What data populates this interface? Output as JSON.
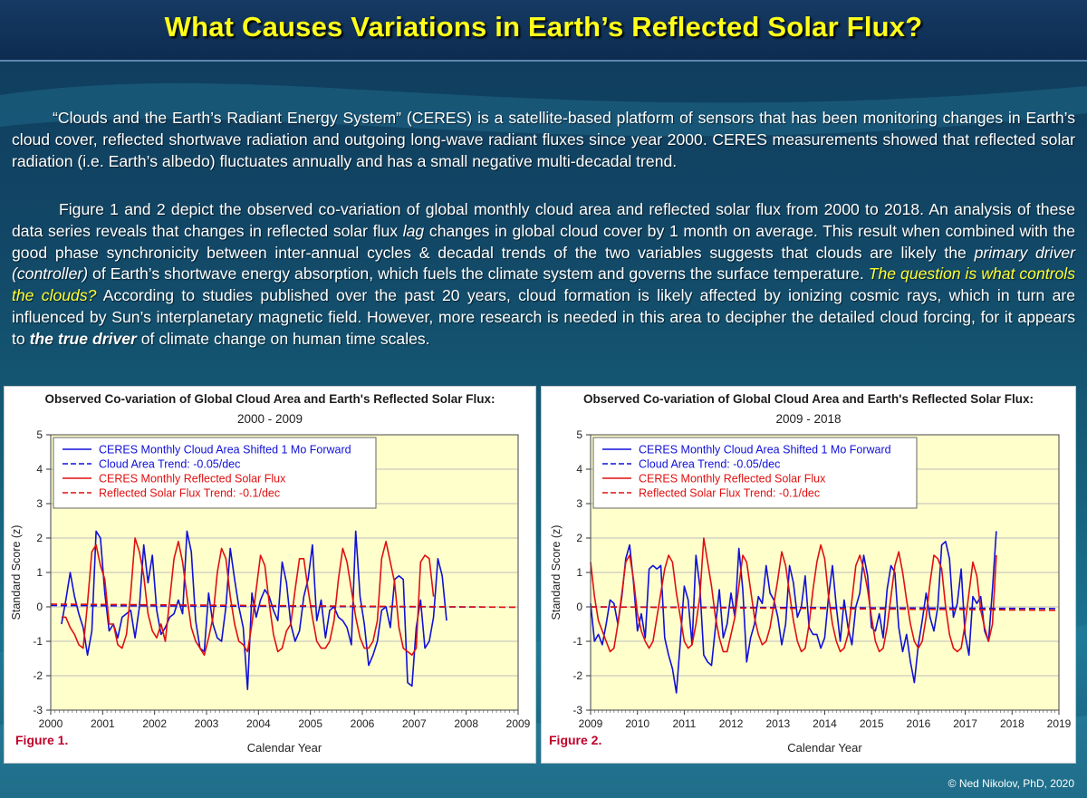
{
  "header": {
    "title": "What Causes Variations in Earth’s Reflected Solar Flux?"
  },
  "paragraph1": "“Clouds and the Earth’s Radiant Energy System” (CERES) is a satellite-based platform of sensors that has been monitoring changes in Earth’s cloud cover, reflected shortwave radiation and outgoing long-wave radiant fluxes since year 2000. CERES measurements showed that reflected solar radiation (i.e. Earth’s albedo) fluctuates annually and has a small negative multi-decadal trend.",
  "paragraph2": {
    "part1": "Figure 1 and 2 depict the observed co-variation of global monthly cloud area and reflected solar flux from 2000 to 2018. An analysis of these data series reveals that changes in reflected solar flux ",
    "lag": "lag",
    "part2": " changes in global cloud cover by 1 month on average. This result when combined with the good phase synchronicity between inter-annual cycles & decadal trends of the two variables suggests that clouds are likely the ",
    "primary": "primary driver (controller)",
    "part3": " of Earth’s shortwave energy absorption, which  fuels the climate system and governs the surface temperature. ",
    "question": "The question is what controls the clouds?",
    "part4": " According to studies published over the past 20 years, cloud formation is likely affected by ionizing cosmic rays, which in turn are influenced by Sun’s interplanetary magnetic field. However, more research is needed in this area to decipher the detailed cloud forcing, for it appears to ",
    "true_driver": "the true driver",
    "part5": " of climate change on human time scales."
  },
  "copyright": "© Ned Nikolov, PhD, 2020",
  "colors": {
    "cloud": "#1010d8",
    "flux": "#e01010",
    "plot_bg": "#ffffcc",
    "title_yellow": "#ffff1a"
  },
  "chart_data": [
    {
      "type": "line",
      "figure_label": "Figure 1.",
      "title": "Observed Co-variation of Global Cloud Area and Earth's Reflected Solar Flux:",
      "subtitle": "2000 - 2009",
      "xlabel": "Calendar Year",
      "ylabel": "Standard Score (z)",
      "xlim": [
        2000,
        2009
      ],
      "ylim": [
        -3,
        5
      ],
      "x_ticks": [
        "2000",
        "2001",
        "2002",
        "2003",
        "2004",
        "2005",
        "2006",
        "2007",
        "2008",
        "2009"
      ],
      "y_ticks": [
        "5",
        "4",
        "3",
        "2",
        "1",
        "0",
        "-1",
        "-2",
        "-3"
      ],
      "legend": [
        "CERES Monthly Cloud Area Shifted 1 Mo Forward",
        "Cloud Area Trend: -0.05/dec",
        "CERES Monthly Reflected Solar Flux",
        "Reflected Solar Flux Trend: -0.1/dec"
      ],
      "series": [
        {
          "name": "CERES Monthly Cloud Area Shifted 1 Mo Forward",
          "x_start": 2000.208,
          "step": 0.0833,
          "values": [
            -0.5,
            0.2,
            1.0,
            0.3,
            -0.2,
            -0.6,
            -1.4,
            -0.7,
            2.2,
            2.0,
            0.4,
            -0.7,
            -0.5,
            -0.9,
            -0.3,
            -0.2,
            -0.1,
            -0.9,
            0.0,
            1.8,
            0.7,
            1.5,
            -0.1,
            -0.8,
            -0.6,
            -0.3,
            -0.2,
            0.2,
            -0.2,
            2.2,
            1.6,
            -0.4,
            -1.2,
            -1.3,
            0.4,
            -0.5,
            -0.9,
            -1.0,
            0.0,
            1.7,
            0.8,
            0.0,
            -0.6,
            -2.4,
            0.4,
            -0.3,
            0.2,
            0.5,
            0.3,
            -0.1,
            -0.4,
            1.3,
            0.7,
            -0.5,
            -1.0,
            -0.7,
            0.3,
            0.8,
            1.8,
            -0.4,
            0.2,
            -0.9,
            -0.1,
            0.0,
            -0.3,
            -0.4,
            -0.6,
            -1.1,
            2.2,
            0.3,
            -0.5,
            -1.7,
            -1.4,
            -1.0,
            -0.1,
            0.0,
            -0.6,
            0.8,
            0.9,
            0.8,
            -2.2,
            -2.3,
            -0.6,
            0.2,
            -1.2,
            -1.0,
            -0.3,
            1.4,
            0.9,
            -0.4
          ]
        },
        {
          "name": "CERES Monthly Reflected Solar Flux",
          "x_start": 2000.208,
          "step": 0.0833,
          "values": [
            -0.3,
            -0.3,
            -0.6,
            -0.8,
            -1.1,
            -1.2,
            0.1,
            1.6,
            1.8,
            1.2,
            0.8,
            -0.5,
            -0.5,
            -1.1,
            -1.2,
            -0.8,
            0.4,
            2.0,
            1.6,
            0.9,
            -0.2,
            -0.7,
            -0.9,
            -0.5,
            -1.0,
            0.2,
            1.4,
            1.9,
            1.3,
            0.3,
            -0.6,
            -1.0,
            -1.2,
            -1.4,
            -0.9,
            -0.3,
            1.0,
            1.7,
            1.4,
            0.3,
            -0.5,
            -1.0,
            -1.1,
            -1.3,
            -0.5,
            0.5,
            1.5,
            1.2,
            0.1,
            -0.8,
            -1.3,
            -1.2,
            -0.7,
            -0.5,
            0.5,
            1.4,
            1.4,
            0.5,
            -0.3,
            -1.0,
            -1.2,
            -1.2,
            -1.0,
            -0.4,
            0.8,
            1.7,
            1.3,
            0.5,
            -0.3,
            -0.9,
            -1.2,
            -1.2,
            -1.0,
            -0.4,
            1.4,
            1.9,
            1.3,
            0.7,
            -0.6,
            -1.2,
            -1.3,
            -1.4,
            -1.2,
            1.3,
            1.5,
            1.4,
            0.3
          ]
        },
        {
          "name": "Cloud Area Trend: -0.05/dec",
          "x": [
            2000,
            2009
          ],
          "values": [
            0.04,
            -0.01
          ]
        },
        {
          "name": "Reflected Solar Flux Trend: -0.1/dec",
          "x": [
            2000,
            2009
          ],
          "values": [
            0.08,
            -0.01
          ]
        }
      ]
    },
    {
      "type": "line",
      "figure_label": "Figure 2.",
      "title": "Observed Co-variation of Global Cloud Area and Earth's Reflected Solar Flux:",
      "subtitle": "2009 - 2018",
      "xlabel": "Calendar Year",
      "ylabel": "Standard Score (z)",
      "xlim": [
        2009,
        2019
      ],
      "ylim": [
        -3,
        5
      ],
      "x_ticks": [
        "2009",
        "2010",
        "2011",
        "2012",
        "2013",
        "2014",
        "2015",
        "2016",
        "2017",
        "2018",
        "2019"
      ],
      "y_ticks": [
        "5",
        "4",
        "3",
        "2",
        "1",
        "0",
        "-1",
        "-2",
        "-3"
      ],
      "legend": [
        "CERES Monthly Cloud Area Shifted 1 Mo Forward",
        "Cloud Area Trend: -0.05/dec",
        "CERES Monthly Reflected Solar Flux",
        "Reflected Solar Flux Trend: -0.1/dec"
      ],
      "series": [
        {
          "name": "CERES Monthly Cloud Area Shifted 1 Mo Forward",
          "x_start": 2009.0,
          "step": 0.0833,
          "values": [
            0.1,
            -1.0,
            -0.8,
            -1.1,
            -0.5,
            0.2,
            0.1,
            -0.5,
            0.3,
            1.4,
            1.8,
            0.7,
            -0.7,
            -0.2,
            -0.9,
            1.1,
            1.2,
            1.1,
            1.2,
            -0.9,
            -1.4,
            -1.8,
            -2.5,
            -1.0,
            0.6,
            0.2,
            -1.1,
            1.5,
            0.6,
            -1.4,
            -1.6,
            -1.7,
            -0.6,
            0.5,
            -0.9,
            -0.5,
            0.4,
            -0.3,
            1.7,
            0.5,
            -1.6,
            -0.9,
            -0.5,
            0.3,
            0.1,
            1.2,
            0.4,
            0.2,
            -0.3,
            -1.1,
            -0.5,
            1.2,
            0.7,
            -0.3,
            0.0,
            0.9,
            -0.6,
            -0.8,
            -0.8,
            -1.2,
            -0.9,
            0.3,
            1.2,
            0.0,
            -1.0,
            0.2,
            -0.6,
            -1.1,
            0.0,
            0.4,
            1.5,
            0.9,
            -0.6,
            -0.7,
            -0.2,
            -0.9,
            0.5,
            1.2,
            1.0,
            -0.6,
            -1.3,
            -0.8,
            -1.6,
            -2.2,
            -1.1,
            -0.4,
            0.4,
            -0.3,
            -0.7,
            0.0,
            1.8,
            1.9,
            1.4,
            -0.3,
            0.1,
            1.1,
            -0.8,
            -1.4,
            0.3,
            0.1,
            0.3,
            -0.7,
            -1.0,
            0.5,
            2.2
          ]
        },
        {
          "name": "CERES Monthly Reflected Solar Flux",
          "x_start": 2009.0,
          "step": 0.0833,
          "values": [
            1.3,
            0.3,
            -0.4,
            -0.7,
            -1.0,
            -1.3,
            -1.2,
            -0.5,
            0.4,
            1.3,
            1.5,
            0.8,
            -0.2,
            -0.7,
            -1.0,
            -1.2,
            -1.0,
            -0.3,
            0.4,
            1.1,
            1.5,
            1.3,
            0.4,
            -0.3,
            -1.0,
            -1.2,
            -1.1,
            -0.5,
            0.3,
            2.0,
            1.3,
            0.6,
            -0.3,
            -0.9,
            -1.3,
            -1.3,
            -0.8,
            -0.3,
            0.6,
            1.5,
            1.3,
            0.5,
            -0.3,
            -0.8,
            -1.1,
            -1.0,
            -0.6,
            0.1,
            0.8,
            1.6,
            1.2,
            0.4,
            -0.4,
            -1.0,
            -1.3,
            -1.2,
            -0.5,
            0.5,
            1.3,
            1.8,
            1.4,
            0.3,
            -0.5,
            -1.0,
            -1.3,
            -1.2,
            -0.8,
            0.2,
            1.2,
            1.5,
            1.1,
            0.5,
            -0.3,
            -1.0,
            -1.3,
            -1.2,
            -0.6,
            0.3,
            1.2,
            1.6,
            1.0,
            0.2,
            -0.5,
            -1.0,
            -1.2,
            -1.0,
            -0.3,
            0.7,
            1.5,
            1.4,
            1.1,
            0.0,
            -0.8,
            -1.2,
            -1.3,
            -1.2,
            -0.5,
            0.4,
            1.3,
            0.9,
            -0.1,
            -0.6,
            -1.0,
            -0.5,
            1.5
          ]
        },
        {
          "name": "Cloud Area Trend: -0.05/dec",
          "x": [
            2009,
            2019
          ],
          "values": [
            0.0,
            -0.05
          ]
        },
        {
          "name": "Reflected Solar Flux Trend: -0.1/dec",
          "x": [
            2009,
            2019
          ],
          "values": [
            0.0,
            -0.1
          ]
        }
      ]
    }
  ]
}
